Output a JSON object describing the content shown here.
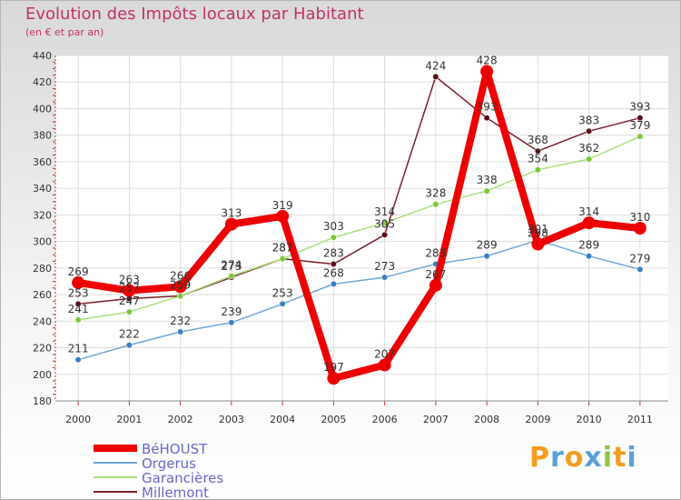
{
  "title": "Evolution des Impôts locaux par Habitant",
  "subtitle": "(en € et par an)",
  "brand": {
    "letters": [
      "P",
      "r",
      "o",
      "x",
      "i",
      "t",
      "i"
    ],
    "colors": [
      "#f39c1f",
      "#5aa0d8",
      "#f39c1f",
      "#5aa0d8",
      "#8cc63f",
      "#f39c1f",
      "#5aa0d8"
    ]
  },
  "chart_data": {
    "type": "line",
    "title": "Evolution des Impôts locaux par Habitant",
    "subtitle": "(en € et par an)",
    "categories": [
      "2000",
      "2001",
      "2002",
      "2003",
      "2004",
      "2005",
      "2006",
      "2007",
      "2008",
      "2009",
      "2010",
      "2011"
    ],
    "ylim": [
      180,
      440
    ],
    "yticks": [
      180,
      200,
      220,
      240,
      260,
      280,
      300,
      320,
      340,
      360,
      380,
      400,
      420,
      440
    ],
    "grid": true,
    "legend_position": "bottom-left",
    "series": [
      {
        "name": "Millemont",
        "color": "#7a1f2a",
        "marker": "#5a0f18",
        "values": [
          253,
          257,
          259,
          273,
          287,
          283,
          305,
          424,
          393,
          368,
          383,
          393
        ]
      },
      {
        "name": "Garancières",
        "color": "#a8e07a",
        "marker": "#7cc73a",
        "values": [
          241,
          247,
          259,
          274,
          287,
          303,
          314,
          328,
          338,
          354,
          362,
          379
        ]
      },
      {
        "name": "Orgerus",
        "color": "#6ea6d8",
        "marker": "#3a7fc4",
        "values": [
          211,
          222,
          232,
          239,
          253,
          268,
          273,
          283,
          289,
          301,
          289,
          279
        ]
      },
      {
        "name": "BéHOUST",
        "color": "#ee0000",
        "marker": "#ee0000",
        "values": [
          269,
          263,
          266,
          313,
          319,
          197,
          207,
          267,
          428,
          298,
          314,
          310
        ]
      }
    ],
    "legend_order": [
      "BéHOUST",
      "Orgerus",
      "Garancières",
      "Millemont"
    ]
  }
}
